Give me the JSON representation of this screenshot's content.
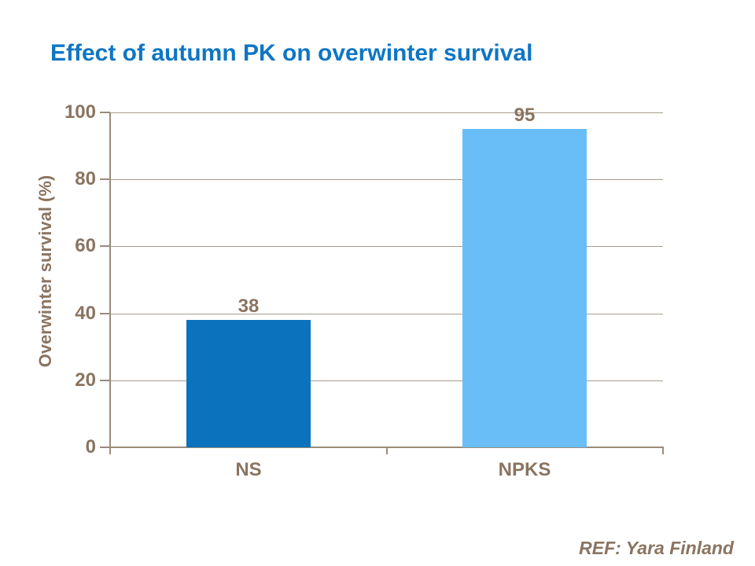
{
  "slide": {
    "title": "Effect of autumn PK on overwinter survival",
    "ref_note": "REF: Yara Finland"
  },
  "chart_data": {
    "type": "bar",
    "title": "Effect of autumn PK on overwinter survival",
    "categories": [
      "NS",
      "NPKS"
    ],
    "values": [
      38,
      95
    ],
    "data_labels": [
      "38",
      "95"
    ],
    "xlabel": "",
    "ylabel": "Overwinter survival (%)",
    "ylim": [
      0,
      100
    ],
    "yticks": [
      0,
      20,
      40,
      60,
      80,
      100
    ],
    "ytick_labels": [
      "0",
      "20",
      "40",
      "60",
      "80",
      "100"
    ],
    "grid": true,
    "legend": false,
    "bar_colors": [
      "#0b72bd",
      "#69bef8"
    ]
  },
  "colors": {
    "title_blue": "#0e76c4",
    "text_brown": "#8a7460",
    "axis_line": "#9a8c7a",
    "gridline": "#a79c8e",
    "bar_ns": "#0b72bd",
    "bar_npks": "#69bef8",
    "background": "#ffffff"
  }
}
